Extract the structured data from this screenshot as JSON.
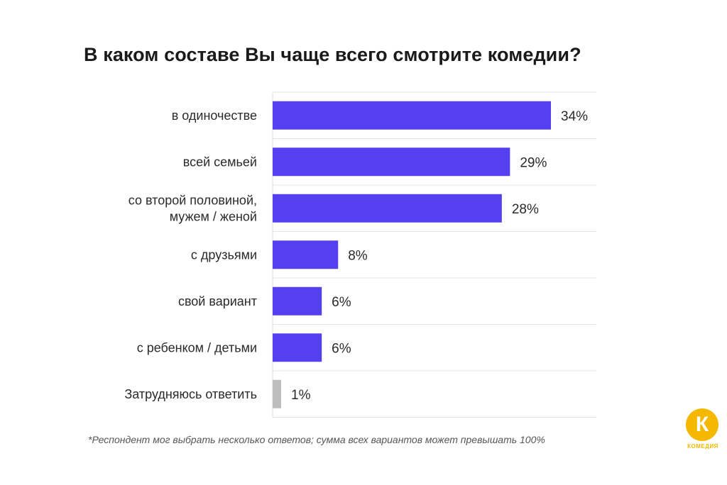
{
  "chart_data": {
    "type": "bar",
    "orientation": "horizontal",
    "title": "В каком составе Вы чаще всего смотрите комедии?",
    "categories": [
      [
        "в одиночестве"
      ],
      [
        "всей семьей"
      ],
      [
        "со второй половиной,",
        "мужем / женой"
      ],
      [
        "с друзьями"
      ],
      [
        "свой вариант"
      ],
      [
        "с ребенком / детьми"
      ],
      [
        "Затрудняюсь ответить"
      ]
    ],
    "values": [
      34,
      29,
      28,
      8,
      6,
      6,
      1
    ],
    "value_labels": [
      "34%",
      "29%",
      "28%",
      "8%",
      "6%",
      "6%",
      "1%"
    ],
    "colors": [
      "#5540f0",
      "#5540f0",
      "#5540f0",
      "#5540f0",
      "#5540f0",
      "#5540f0",
      "#bdbdbd"
    ],
    "xlim": [
      0,
      40
    ],
    "grid": "horizontal lines between rows"
  },
  "footnote": "*Респондент мог выбрать несколько ответов; сумма всех вариантов может превышать 100%",
  "logo": {
    "letter": "К",
    "text": "КОМЕДИЯ",
    "color": "#f5b800"
  }
}
